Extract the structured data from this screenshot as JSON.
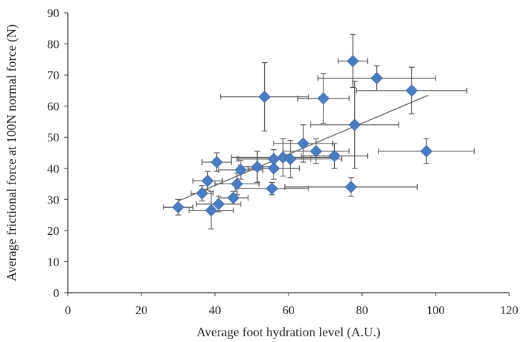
{
  "chart_data": {
    "type": "scatter",
    "xlabel": "Average foot hydration level (A.U.)",
    "ylabel": "Average frictional force at 100N normal force  (N)",
    "xlim": [
      0,
      120
    ],
    "ylim": [
      0,
      90
    ],
    "x_ticks": [
      0,
      20,
      40,
      60,
      80,
      100,
      120
    ],
    "y_ticks": [
      0,
      10,
      20,
      30,
      40,
      50,
      60,
      70,
      80,
      90
    ],
    "grid": false,
    "legend": "none",
    "marker": "diamond",
    "marker_color": "#4a7cc0",
    "errorbar_color": "#555555",
    "points": [
      {
        "x": 30,
        "y": 27.5,
        "xerr": 4,
        "yerr": 2.5
      },
      {
        "x": 36.5,
        "y": 32,
        "xerr": 3,
        "yerr": 2.5
      },
      {
        "x": 38,
        "y": 36,
        "xerr": 4,
        "yerr": 3
      },
      {
        "x": 39,
        "y": 26.5,
        "xerr": 6,
        "yerr": 6
      },
      {
        "x": 40.5,
        "y": 42,
        "xerr": 4,
        "yerr": 3
      },
      {
        "x": 41,
        "y": 28.5,
        "xerr": 6,
        "yerr": 2.5
      },
      {
        "x": 45,
        "y": 30.5,
        "xerr": 4,
        "yerr": 2
      },
      {
        "x": 46,
        "y": 35,
        "xerr": 6,
        "yerr": 3.5
      },
      {
        "x": 47,
        "y": 39.5,
        "xerr": 6,
        "yerr": 3
      },
      {
        "x": 51.5,
        "y": 40.5,
        "xerr": 5,
        "yerr": 5
      },
      {
        "x": 53.5,
        "y": 63,
        "xerr": 12,
        "yerr": 11
      },
      {
        "x": 55.5,
        "y": 33.5,
        "xerr": 10,
        "yerr": 2
      },
      {
        "x": 56,
        "y": 40,
        "xerr": 7,
        "yerr": 3.5
      },
      {
        "x": 56,
        "y": 43,
        "xerr": 10,
        "yerr": 3
      },
      {
        "x": 58.5,
        "y": 43.5,
        "xerr": 14,
        "yerr": 6
      },
      {
        "x": 60.5,
        "y": 43,
        "xerr": 14,
        "yerr": 6
      },
      {
        "x": 64,
        "y": 48,
        "xerr": 8,
        "yerr": 6
      },
      {
        "x": 67.5,
        "y": 45.5,
        "xerr": 9,
        "yerr": 4
      },
      {
        "x": 69.5,
        "y": 62.5,
        "xerr": 7,
        "yerr": 8
      },
      {
        "x": 72.5,
        "y": 44,
        "xerr": 9,
        "yerr": 4
      },
      {
        "x": 77,
        "y": 34,
        "xerr": 18,
        "yerr": 3
      },
      {
        "x": 77.5,
        "y": 74.5,
        "xerr": 4,
        "yerr": 8.5
      },
      {
        "x": 78,
        "y": 54,
        "xerr": 12,
        "yerr": 14
      },
      {
        "x": 84,
        "y": 69,
        "xerr": 16,
        "yerr": 4
      },
      {
        "x": 93.5,
        "y": 65,
        "xerr": 15,
        "yerr": 7.5
      },
      {
        "x": 97.5,
        "y": 45.5,
        "xerr": 13,
        "yerr": 4
      }
    ],
    "trendline": {
      "x": [
        30,
        98
      ],
      "y": [
        29.5,
        63.5
      ]
    }
  }
}
